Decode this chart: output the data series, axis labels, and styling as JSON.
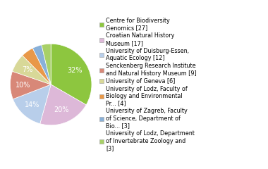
{
  "labels": [
    "Centre for Biodiversity\nGenomics [27]",
    "Croatian Natural History\nMuseum [17]",
    "University of Duisburg-Essen,\nAquatic Ecology [12]",
    "Senckenberg Research Institute\nand Natural History Museum [9]",
    "University of Geneva [6]",
    "University of Lodz, Faculty of\nBiology and Environmental\nPr... [4]",
    "University of Zagreb, Faculty\nof Science, Department of\nBio... [3]",
    "University of Lodz, Department\nof Invertebrate Zoology and\n[3]"
  ],
  "values": [
    27,
    17,
    12,
    9,
    6,
    4,
    3,
    3
  ],
  "colors": [
    "#8dc63f",
    "#ddb8d8",
    "#b8ceea",
    "#d88878",
    "#d8d898",
    "#e89848",
    "#88b0d8",
    "#a8d068"
  ],
  "pct_labels": [
    "32%",
    "20%",
    "14%",
    "10%",
    "7%",
    "4%",
    "3%",
    "3%"
  ],
  "background_color": "#ffffff",
  "text_color_white": "#ffffff",
  "text_color_dark": "#333333",
  "pct_fontsize": 7,
  "legend_fontsize": 5.8
}
